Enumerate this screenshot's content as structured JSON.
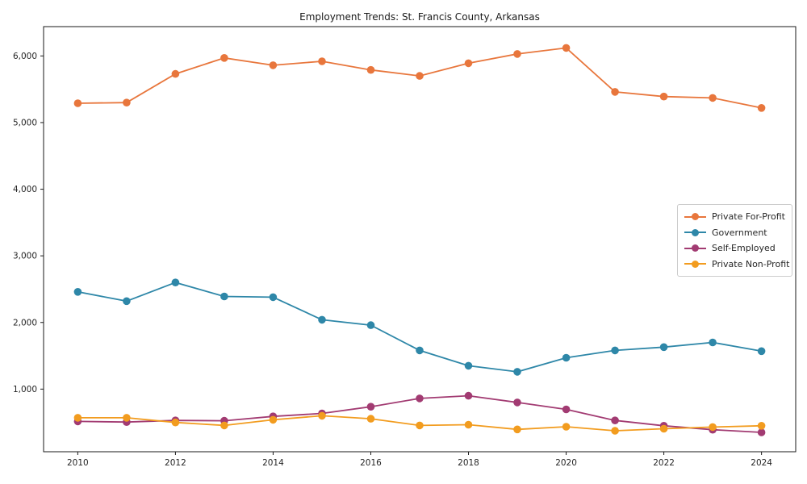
{
  "chart_data": {
    "type": "line",
    "title": "Employment Trends: St. Francis County, Arkansas",
    "xlabel": "",
    "ylabel": "",
    "grid": false,
    "legend_position": "center-right",
    "x": [
      2010,
      2011,
      2012,
      2013,
      2014,
      2015,
      2016,
      2017,
      2018,
      2019,
      2020,
      2021,
      2022,
      2023,
      2024
    ],
    "xticks": [
      2010,
      2012,
      2014,
      2016,
      2018,
      2020,
      2022,
      2024
    ],
    "yticks": [
      1000,
      2000,
      3000,
      4000,
      5000,
      6000
    ],
    "xlim": [
      2009.3,
      2024.7
    ],
    "ylim": [
      60,
      6440
    ],
    "series": [
      {
        "name": "Private For-Profit",
        "color": "#E8763C",
        "values": [
          5290,
          5300,
          5730,
          5970,
          5860,
          5920,
          5790,
          5700,
          5890,
          6030,
          6120,
          5460,
          5390,
          5370,
          5220
        ]
      },
      {
        "name": "Government",
        "color": "#2E87A8",
        "values": [
          2460,
          2320,
          2600,
          2390,
          2380,
          2040,
          1960,
          1580,
          1350,
          1260,
          1470,
          1580,
          1630,
          1700,
          1570
        ]
      },
      {
        "name": "Self-Employed",
        "color": "#A23B72",
        "values": [
          515,
          505,
          530,
          525,
          590,
          635,
          735,
          860,
          900,
          800,
          695,
          530,
          450,
          390,
          350
        ]
      },
      {
        "name": "Private Non-Profit",
        "color": "#F29C1F",
        "values": [
          570,
          570,
          500,
          455,
          540,
          600,
          555,
          455,
          465,
          395,
          435,
          375,
          405,
          430,
          450
        ]
      }
    ]
  }
}
